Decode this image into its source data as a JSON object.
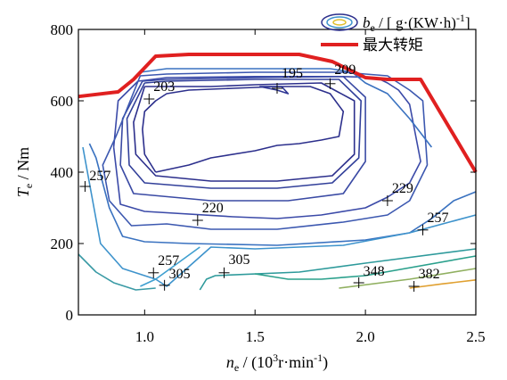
{
  "chart_data": {
    "type": "line",
    "xlabel": {
      "sym": "n",
      "sub": "e",
      "rest1": " / (10",
      "sup": "3",
      "rest2": "r·min",
      "sup2": "-1",
      "rest3": ")"
    },
    "ylabel": {
      "sym": "T",
      "sub": "e",
      "rest": " / Nm"
    },
    "xlim": [
      0.7,
      2.5
    ],
    "ylim": [
      0,
      800
    ],
    "xticks": [
      {
        "v": 1.0,
        "label": "1.0"
      },
      {
        "v": 1.5,
        "label": "1.5"
      },
      {
        "v": 2.0,
        "label": "2.0"
      },
      {
        "v": 2.5,
        "label": "2.5"
      }
    ],
    "yticks": [
      {
        "v": 0,
        "label": "0"
      },
      {
        "v": 200,
        "label": "200"
      },
      {
        "v": 400,
        "label": "400"
      },
      {
        "v": 600,
        "label": "600"
      },
      {
        "v": 800,
        "label": "800"
      }
    ],
    "legend": {
      "placement": "top-right",
      "contour_label": {
        "sym": "b",
        "sub": "e",
        "rest1": " / [ g·(KW·h)",
        "sup": "-1",
        "rest2": "]"
      },
      "max_torque_label": "最大转矩"
    },
    "max_torque": {
      "color": "#e02020",
      "x": [
        0.7,
        0.88,
        0.95,
        1.05,
        1.2,
        1.4,
        1.7,
        1.85,
        2.0,
        2.1,
        2.25,
        2.5
      ],
      "y": [
        612,
        625,
        660,
        725,
        730,
        730,
        730,
        710,
        665,
        660,
        660,
        400
      ]
    },
    "contours": [
      {
        "color": "#2c2f8c",
        "x": [
          1.05,
          1.0,
          0.99,
          1.0,
          1.05,
          1.1,
          1.2,
          1.4,
          1.6,
          1.75,
          1.84,
          1.9,
          1.88,
          1.8,
          1.7,
          1.6,
          1.5,
          1.3,
          1.2,
          1.05
        ],
        "y": [
          400,
          450,
          520,
          570,
          600,
          620,
          630,
          635,
          640,
          640,
          620,
          570,
          500,
          490,
          480,
          475,
          460,
          440,
          420,
          400
        ]
      },
      {
        "color": "#2f3694",
        "x": [
          1.52,
          1.6,
          1.65,
          1.62,
          1.52
        ],
        "y": [
          640,
          630,
          620,
          640,
          640
        ]
      },
      {
        "color": "#2c2f8c",
        "x": [
          1.0,
          0.95,
          0.96,
          1.05,
          1.3,
          1.6,
          1.85,
          1.95,
          1.95,
          1.8,
          1.5,
          1.3,
          1.0
        ],
        "y": [
          640,
          540,
          450,
          390,
          375,
          375,
          390,
          450,
          600,
          650,
          645,
          640,
          640
        ]
      },
      {
        "color": "#32409a",
        "x": [
          1.0,
          0.92,
          0.93,
          1.0,
          1.3,
          1.6,
          1.85,
          1.97,
          1.98,
          1.88,
          1.5,
          1.1,
          1.0
        ],
        "y": [
          650,
          550,
          420,
          370,
          355,
          355,
          370,
          440,
          600,
          660,
          660,
          655,
          650
        ]
      },
      {
        "color": "#3a4aa4",
        "x": [
          0.99,
          0.9,
          0.89,
          0.95,
          1.3,
          1.65,
          1.9,
          2.0,
          2.0,
          1.9,
          1.5,
          1.1,
          0.99
        ],
        "y": [
          655,
          550,
          420,
          340,
          320,
          320,
          340,
          430,
          610,
          668,
          665,
          660,
          655
        ]
      },
      {
        "color": "#3b4aa8",
        "x": [
          0.86,
          0.89,
          1.0,
          1.4,
          1.6,
          1.8,
          2.0,
          2.1,
          2.2,
          2.25,
          2.2,
          2.15,
          2.1,
          2.05,
          1.9,
          1.5,
          1.1,
          0.97,
          0.88,
          0.86
        ],
        "y": [
          470,
          310,
          290,
          275,
          270,
          280,
          300,
          330,
          370,
          430,
          590,
          630,
          650,
          665,
          668,
          668,
          665,
          655,
          600,
          470
        ]
      },
      {
        "color": "#3c58b0",
        "x": [
          0.87,
          0.81,
          0.84,
          0.94,
          1.1,
          1.3,
          1.6,
          1.9,
          2.1,
          2.2,
          2.28,
          2.26,
          2.2,
          2.15,
          2.1,
          1.9,
          1.5,
          1.1,
          0.98,
          0.87
        ],
        "y": [
          500,
          420,
          320,
          250,
          255,
          240,
          240,
          260,
          280,
          320,
          420,
          600,
          630,
          650,
          670,
          680,
          680,
          675,
          670,
          500
        ]
      },
      {
        "color": "#3a72c0",
        "x": [
          0.75,
          0.78,
          0.84,
          0.9,
          1.0,
          1.2,
          1.6,
          2.0,
          2.2,
          2.3,
          2.4,
          2.5
        ],
        "y": [
          480,
          440,
          300,
          220,
          205,
          200,
          195,
          210,
          230,
          270,
          320,
          345
        ]
      },
      {
        "color": "#3a72c0",
        "x": [
          0.98,
          1.1,
          1.5,
          1.84,
          1.94,
          2.0,
          2.1,
          2.2,
          2.3
        ],
        "y": [
          680,
          690,
          690,
          690,
          680,
          650,
          620,
          550,
          470
        ]
      },
      {
        "color": "#3e93cc",
        "x": [
          0.72,
          0.8,
          0.9,
          1.0,
          1.05,
          1.1,
          1.3,
          1.5,
          1.9,
          2.2,
          2.5
        ],
        "y": [
          470,
          200,
          130,
          110,
          100,
          80,
          190,
          185,
          195,
          230,
          280
        ]
      },
      {
        "color": "#3f9fd0",
        "x": [
          0.98,
          1.05,
          1.25
        ],
        "y": [
          80,
          100,
          190
        ]
      },
      {
        "color": "#3a9aa5",
        "x": [
          0.7,
          0.78,
          0.86,
          0.96,
          1.05
        ],
        "y": [
          170,
          120,
          90,
          70,
          75
        ]
      },
      {
        "color": "#2e9a9b",
        "x": [
          1.25,
          1.28,
          1.32,
          1.7,
          2.0,
          2.5
        ],
        "y": [
          70,
          100,
          110,
          120,
          145,
          185
        ]
      },
      {
        "color": "#2aa08c",
        "x": [
          1.5,
          1.65,
          1.8,
          2.0,
          2.5
        ],
        "y": [
          115,
          100,
          100,
          110,
          165
        ]
      },
      {
        "color": "#90b060",
        "x": [
          1.88,
          2.2,
          2.5
        ],
        "y": [
          75,
          100,
          130
        ]
      },
      {
        "color": "#e0a030",
        "x": [
          2.2,
          2.35,
          2.5
        ],
        "y": [
          75,
          87,
          98
        ]
      }
    ],
    "labels": [
      {
        "text": "195",
        "x": 1.6,
        "y": 635,
        "tx": 1.62,
        "ty": 665
      },
      {
        "text": "209",
        "x": 1.84,
        "y": 648,
        "tx": 1.86,
        "ty": 675
      },
      {
        "text": "203",
        "x": 1.02,
        "y": 605,
        "tx": 1.04,
        "ty": 628
      },
      {
        "text": "257",
        "x": 0.73,
        "y": 360,
        "tx": 0.75,
        "ty": 378
      },
      {
        "text": "229",
        "x": 2.1,
        "y": 320,
        "tx": 2.12,
        "ty": 342
      },
      {
        "text": "220",
        "x": 1.24,
        "y": 265,
        "tx": 1.26,
        "ty": 288
      },
      {
        "text": "257",
        "x": 2.26,
        "y": 238,
        "tx": 2.28,
        "ty": 260
      },
      {
        "text": "257",
        "x": 1.04,
        "y": 118,
        "tx": 1.06,
        "ty": 140
      },
      {
        "text": "305",
        "x": 1.09,
        "y": 83,
        "tx": 1.11,
        "ty": 103
      },
      {
        "text": "305",
        "x": 1.36,
        "y": 118,
        "tx": 1.38,
        "ty": 142
      },
      {
        "text": "348",
        "x": 1.97,
        "y": 90,
        "tx": 1.99,
        "ty": 110
      },
      {
        "text": "382",
        "x": 2.22,
        "y": 80,
        "tx": 2.24,
        "ty": 102
      }
    ]
  }
}
